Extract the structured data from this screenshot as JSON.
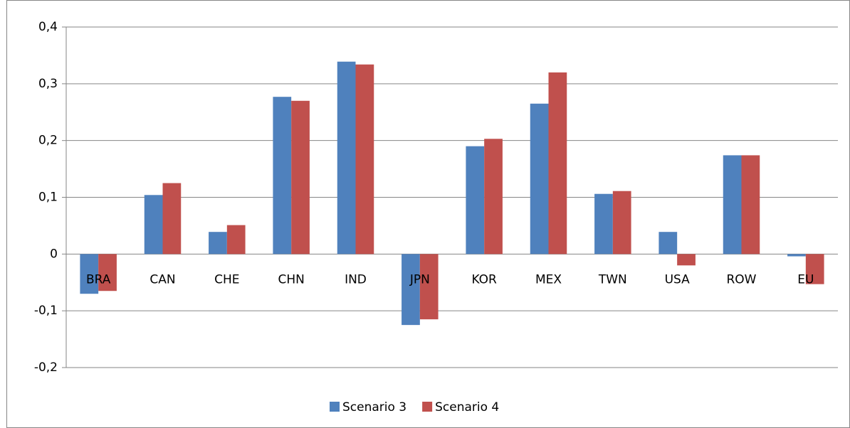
{
  "chart_data": {
    "type": "bar",
    "categories": [
      "BRA",
      "CAN",
      "CHE",
      "CHN",
      "IND",
      "JPN",
      "KOR",
      "MEX",
      "TWN",
      "USA",
      "ROW",
      "EU"
    ],
    "series": [
      {
        "name": "Scenario 3",
        "color": "#4f81bd",
        "values": [
          -0.07,
          0.104,
          0.039,
          0.277,
          0.339,
          -0.125,
          0.19,
          0.265,
          0.106,
          0.039,
          0.174,
          -0.004
        ]
      },
      {
        "name": "Scenario 4",
        "color": "#c0504d",
        "values": [
          -0.065,
          0.125,
          0.051,
          0.27,
          0.334,
          -0.115,
          0.203,
          0.32,
          0.111,
          -0.02,
          0.174,
          -0.053
        ]
      }
    ],
    "ylim": [
      -0.2,
      0.4
    ],
    "yticks": [
      {
        "value": -0.2,
        "label": "-0,2"
      },
      {
        "value": -0.1,
        "label": "-0,1"
      },
      0,
      {
        "value": 0.1,
        "label": "0,1"
      },
      {
        "value": 0.2,
        "label": "0,2"
      },
      {
        "value": 0.3,
        "label": "0,3"
      },
      {
        "value": 0.4,
        "label": "0,4"
      }
    ],
    "grid": true,
    "legend": "bottom"
  }
}
